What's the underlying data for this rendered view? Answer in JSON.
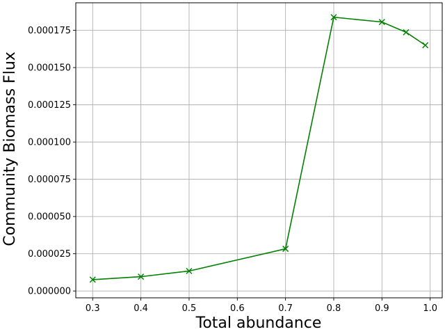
{
  "chart_data": {
    "type": "line",
    "xlabel": "Total abundance",
    "ylabel": "Community Biomass Flux",
    "xlim": [
      0.265,
      1.025
    ],
    "ylim": [
      -4.6e-06,
      0.0001935
    ],
    "xticks": [
      0.3,
      0.4,
      0.5,
      0.6,
      0.7,
      0.8,
      0.9,
      1.0
    ],
    "xtick_labels": [
      "0.3",
      "0.4",
      "0.5",
      "0.6",
      "0.7",
      "0.8",
      "0.9",
      "1.0"
    ],
    "yticks": [
      0,
      2.5e-05,
      5e-05,
      7.5e-05,
      0.0001,
      0.000125,
      0.00015,
      0.000175
    ],
    "ytick_labels": [
      "0.000000",
      "0.000025",
      "0.000050",
      "0.000075",
      "0.000100",
      "0.000125",
      "0.000150",
      "0.000175"
    ],
    "grid": true,
    "series": [
      {
        "color": "#008000",
        "marker": "x",
        "x": [
          0.3,
          0.4,
          0.5,
          0.7,
          0.8,
          0.9,
          0.95,
          0.99
        ],
        "y": [
          7.6e-06,
          9.6e-06,
          1.34e-05,
          2.83e-05,
          0.0001838,
          0.0001806,
          0.0001737,
          0.000165
        ]
      }
    ]
  }
}
